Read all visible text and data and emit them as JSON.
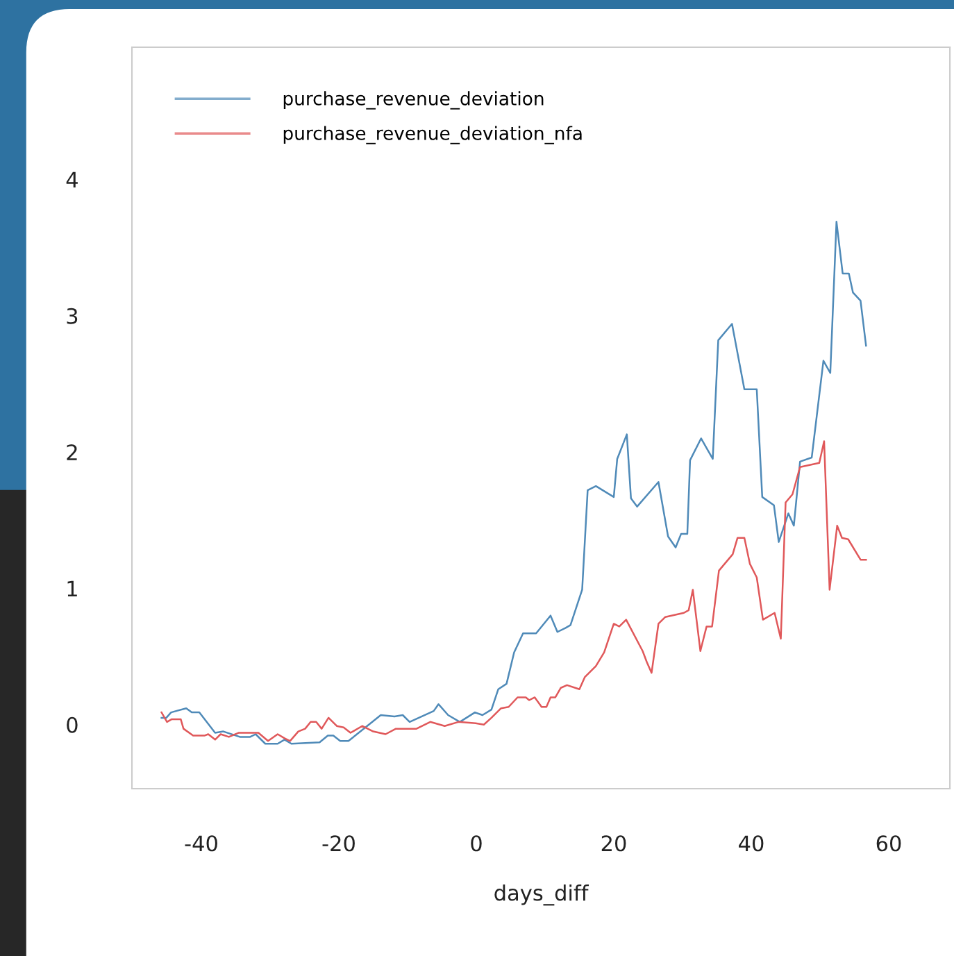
{
  "chart_data": {
    "type": "line",
    "xlabel": "days_diff",
    "xlim": [
      -50.1,
      68.9
    ],
    "ylim": [
      -0.47,
      4.97
    ],
    "xticks": [
      -40,
      -20,
      0,
      20,
      40,
      60
    ],
    "yticks": [
      0,
      1,
      2,
      3,
      4
    ],
    "grid": false,
    "legend": "top left",
    "marker": "none",
    "line_style": "solid",
    "series": [
      {
        "name": "purchase_revenue_deviation",
        "color": "#4f8ab8",
        "x": [
          -45.8,
          -45.1,
          -44.4,
          -42.2,
          -41.4,
          -40.3,
          -38.0,
          -36.8,
          -34.4,
          -32.9,
          -32.1,
          -30.7,
          -28.9,
          -27.9,
          -26.9,
          -22.8,
          -21.6,
          -20.8,
          -19.8,
          -18.6,
          -13.9,
          -11.9,
          -10.7,
          -9.7,
          -6.2,
          -5.5,
          -4.1,
          -2.4,
          -0.2,
          0.9,
          2.2,
          3.2,
          4.4,
          5.5,
          6.8,
          8.7,
          10.8,
          11.8,
          13.0,
          13.7,
          15.4,
          16.2,
          17.4,
          20.0,
          20.5,
          21.9,
          22.5,
          23.4,
          26.5,
          27.9,
          29.0,
          29.8,
          30.7,
          31.1,
          32.7,
          34.4,
          35.2,
          37.2,
          39.0,
          40.8,
          41.6,
          43.3,
          44.0,
          45.4,
          46.2,
          47.1,
          48.8,
          50.5,
          51.5,
          52.4,
          53.3,
          54.2,
          54.8,
          55.9,
          56.7
        ],
        "values": [
          0.05,
          0.05,
          0.09,
          0.12,
          0.09,
          0.09,
          -0.06,
          -0.05,
          -0.09,
          -0.09,
          -0.07,
          -0.14,
          -0.14,
          -0.11,
          -0.14,
          -0.13,
          -0.08,
          -0.08,
          -0.12,
          -0.12,
          0.07,
          0.06,
          0.07,
          0.02,
          0.1,
          0.15,
          0.07,
          0.02,
          0.09,
          0.07,
          0.11,
          0.26,
          0.3,
          0.53,
          0.67,
          0.67,
          0.8,
          0.68,
          0.71,
          0.73,
          0.99,
          1.72,
          1.75,
          1.67,
          1.95,
          2.13,
          1.66,
          1.6,
          1.78,
          1.38,
          1.3,
          1.4,
          1.4,
          1.94,
          2.1,
          1.95,
          2.82,
          2.94,
          2.46,
          2.46,
          1.67,
          1.61,
          1.34,
          1.55,
          1.46,
          1.93,
          1.96,
          2.67,
          2.58,
          3.69,
          3.31,
          3.31,
          3.17,
          3.11,
          2.78
        ]
      },
      {
        "name": "purchase_revenue_deviation_nfa",
        "color": "#e0585a",
        "x": [
          -45.8,
          -45.0,
          -44.3,
          -43.0,
          -42.6,
          -41.2,
          -39.5,
          -39.0,
          -38.0,
          -37.2,
          -36.0,
          -34.6,
          -31.7,
          -30.3,
          -28.9,
          -27.9,
          -27.1,
          -25.9,
          -24.9,
          -24.1,
          -23.3,
          -22.5,
          -21.5,
          -20.3,
          -19.3,
          -18.3,
          -16.6,
          -15.8,
          -15.0,
          -13.2,
          -11.7,
          -8.7,
          -6.7,
          -4.6,
          -2.6,
          -0.1,
          1.1,
          2.2,
          3.6,
          4.7,
          6.0,
          7.2,
          7.7,
          8.5,
          9.5,
          10.2,
          10.8,
          11.5,
          12.3,
          13.2,
          15.0,
          15.8,
          17.4,
          18.6,
          20.0,
          20.8,
          21.8,
          24.2,
          24.8,
          25.5,
          26.5,
          27.5,
          30.2,
          30.9,
          31.5,
          32.6,
          33.5,
          34.3,
          35.3,
          37.3,
          38.0,
          39.0,
          39.8,
          40.8,
          41.7,
          43.4,
          44.3,
          45.0,
          46.0,
          47.1,
          49.9,
          50.6,
          51.4,
          52.5,
          53.2,
          54.1,
          55.9,
          56.7
        ],
        "values": [
          0.09,
          0.02,
          0.04,
          0.04,
          -0.03,
          -0.08,
          -0.08,
          -0.07,
          -0.11,
          -0.07,
          -0.09,
          -0.06,
          -0.06,
          -0.12,
          -0.07,
          -0.1,
          -0.12,
          -0.05,
          -0.03,
          0.02,
          0.02,
          -0.03,
          0.05,
          -0.01,
          -0.02,
          -0.06,
          -0.01,
          -0.03,
          -0.05,
          -0.07,
          -0.03,
          -0.03,
          0.02,
          -0.01,
          0.02,
          0.01,
          0.0,
          0.05,
          0.12,
          0.13,
          0.2,
          0.2,
          0.18,
          0.2,
          0.13,
          0.13,
          0.2,
          0.2,
          0.27,
          0.29,
          0.26,
          0.35,
          0.43,
          0.53,
          0.74,
          0.72,
          0.77,
          0.54,
          0.46,
          0.38,
          0.74,
          0.79,
          0.82,
          0.84,
          0.99,
          0.54,
          0.72,
          0.72,
          1.13,
          1.25,
          1.37,
          1.37,
          1.18,
          1.08,
          0.77,
          0.82,
          0.63,
          1.63,
          1.69,
          1.89,
          1.92,
          2.08,
          0.99,
          1.46,
          1.37,
          1.36,
          1.21,
          1.21
        ]
      }
    ]
  }
}
